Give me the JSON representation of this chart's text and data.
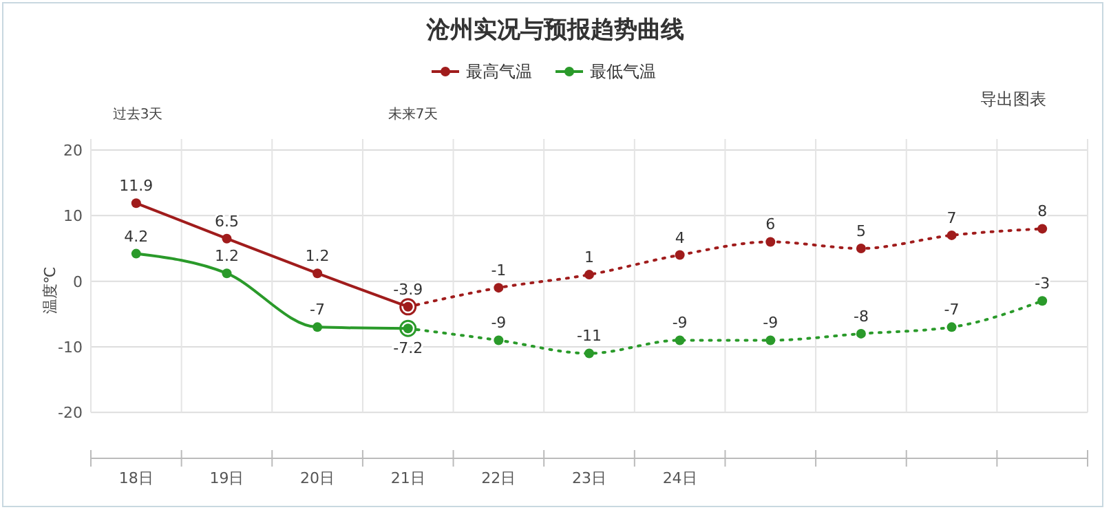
{
  "chart_data": {
    "type": "line",
    "title": "沧州实况与预报趋势曲线",
    "ylabel": "温度℃",
    "categories": [
      "18日",
      "19日",
      "20日",
      "21日",
      "22日",
      "23日",
      "24日",
      null,
      null,
      null,
      null
    ],
    "series": [
      {
        "name": "最高气温",
        "color": "#a01c1c",
        "line_style": "solid",
        "values": [
          11.9,
          6.5,
          1.2,
          -3.9,
          null,
          null,
          null,
          null,
          null,
          null,
          null
        ],
        "value_labels": [
          "11.9",
          "6.5",
          "1.2",
          "-3.9",
          null,
          null,
          null,
          null,
          null,
          null,
          null
        ]
      },
      {
        "color": "#a01c1c",
        "line_style": "dotted",
        "values": [
          null,
          null,
          null,
          -3.9,
          -1,
          1,
          4,
          6,
          5,
          7,
          8
        ],
        "value_labels": [
          null,
          null,
          null,
          null,
          "-1",
          "1",
          "4",
          "6",
          "5",
          "7",
          "8"
        ]
      },
      {
        "name": "最低气温",
        "color": "#2a9a2a",
        "line_style": "solid",
        "values": [
          4.2,
          1.2,
          -7,
          -7.2,
          null,
          null,
          null,
          null,
          null,
          null,
          null
        ],
        "value_labels": [
          "4.2",
          "1.2",
          "-7",
          "-7.2",
          null,
          null,
          null,
          null,
          null,
          null,
          null
        ]
      },
      {
        "color": "#2a9a2a",
        "line_style": "dotted",
        "values": [
          null,
          null,
          null,
          -7.2,
          -9,
          -11,
          -9,
          -9,
          -8,
          -7,
          -3
        ],
        "value_labels": [
          null,
          null,
          null,
          null,
          "-9",
          "-11",
          "-9",
          "-9",
          "-8",
          "-7",
          "-3"
        ]
      }
    ],
    "ylim": [
      -27,
      20
    ],
    "yticks": [
      -20,
      -10,
      0,
      10,
      20
    ],
    "grid": true,
    "legend": "top",
    "marker": "circle",
    "annotations": [
      "过去3天",
      "未来7天",
      "导出图表"
    ]
  }
}
